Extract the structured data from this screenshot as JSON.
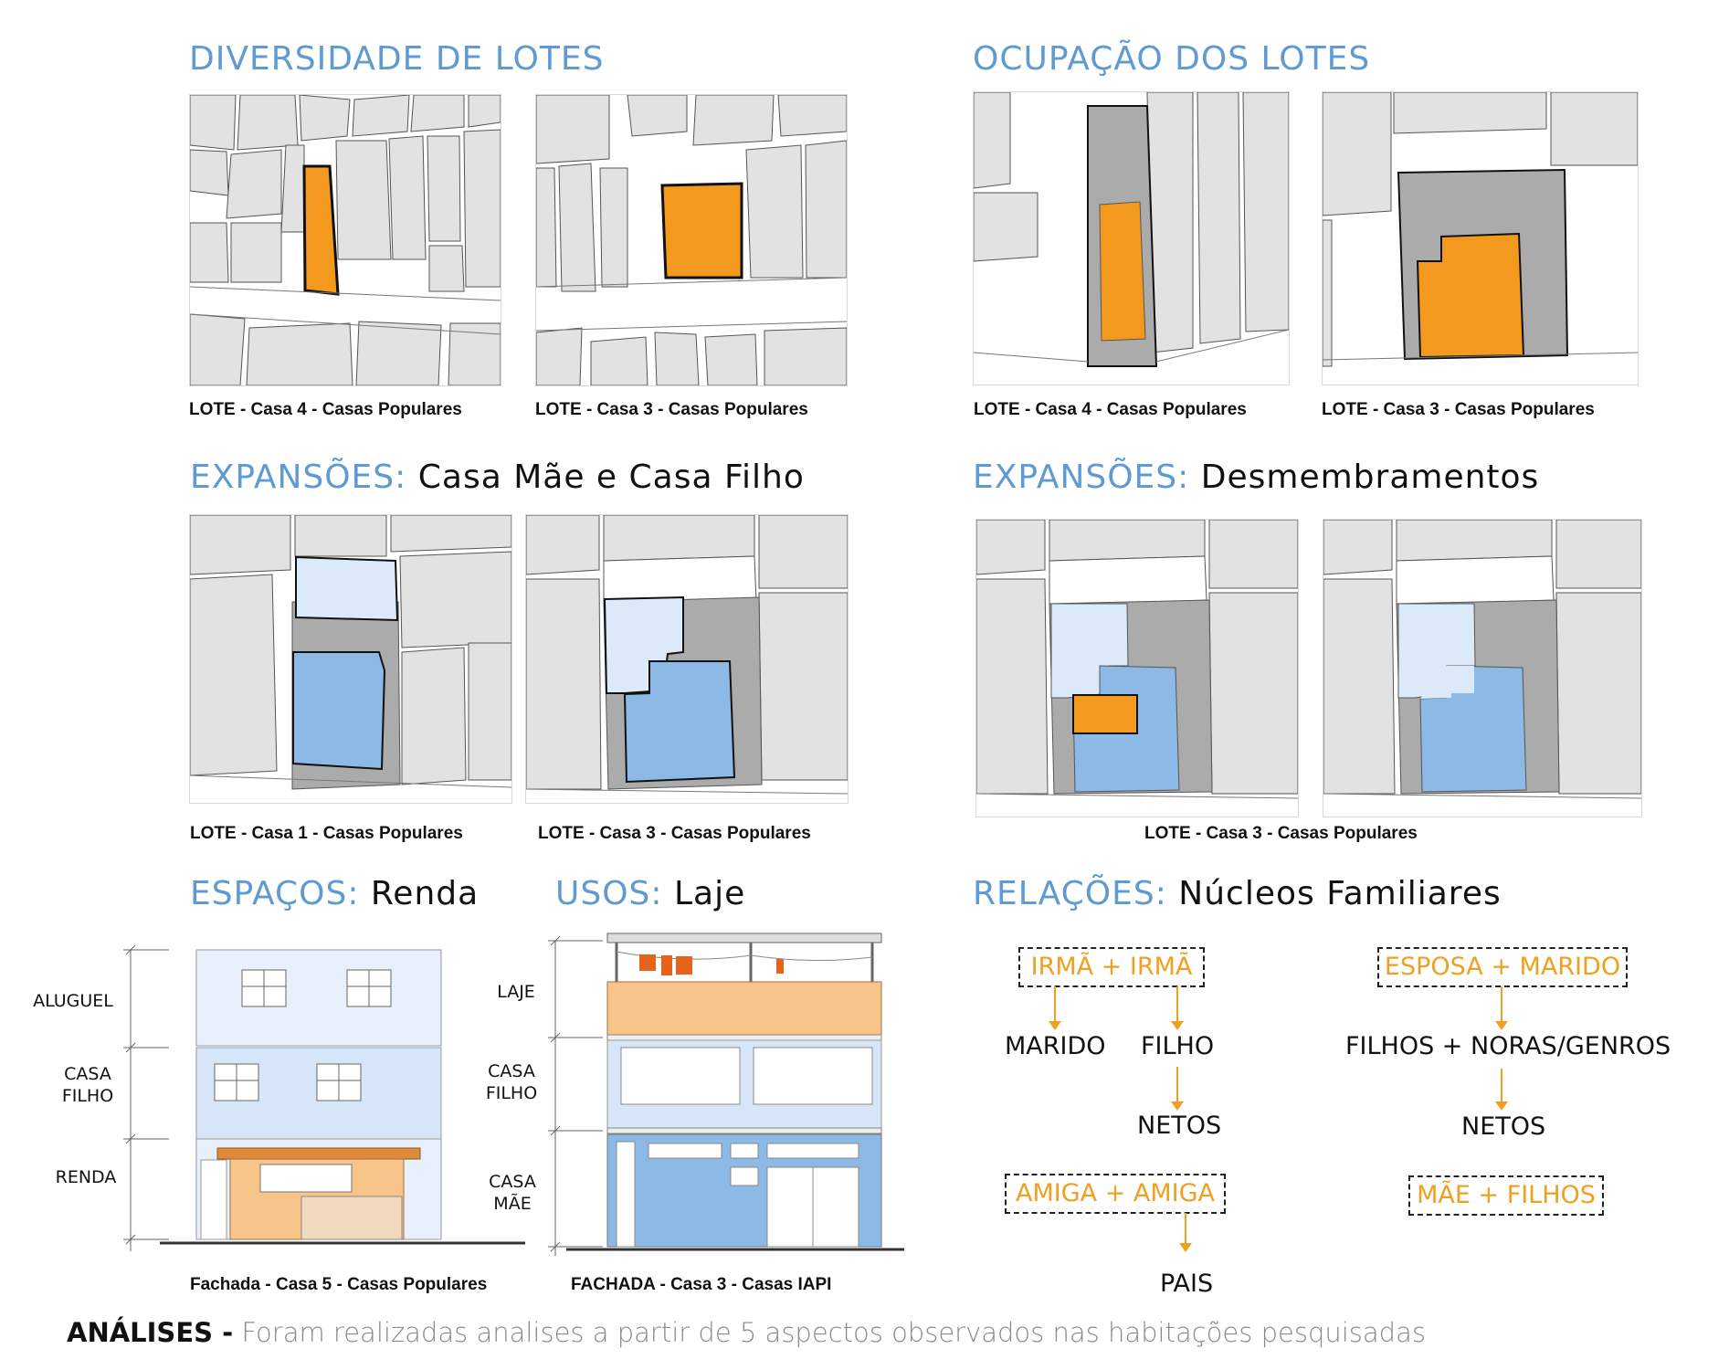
{
  "sections": {
    "diversidade": {
      "title": "DIVERSIDADE DE LOTES"
    },
    "ocupacao": {
      "title": "OCUPAÇÃO DOS LOTES"
    },
    "exp_mae": {
      "title_a": "EXPANSÕES:",
      "title_b": "Casa Mãe e Casa Filho"
    },
    "exp_des": {
      "title_a": "EXPANSÕES:",
      "title_b": "Desmembramentos"
    },
    "espacos": {
      "title_a": "ESPAÇOS:",
      "title_b": "Renda"
    },
    "usos": {
      "title_a": "USOS:",
      "title_b": "Laje"
    },
    "relacoes": {
      "title_a": "RELAÇÕES:",
      "title_b": "Núcleos Familiares"
    }
  },
  "captions": {
    "div_1": "LOTE - Casa 4 - Casas Populares",
    "div_2": "LOTE - Casa 3 - Casas Populares",
    "ocu_1": "LOTE - Casa 4 - Casas Populares",
    "ocu_2": "LOTE - Casa 3 - Casas Populares",
    "mae_1": "LOTE - Casa 1 - Casas Populares",
    "mae_2": "LOTE - Casa 3 - Casas Populares",
    "des": "LOTE - Casa 3 - Casas Populares",
    "fach_1": "Fachada - Casa 5 - Casas Populares",
    "fach_2": "FACHADA - Casa 3 - Casas IAPI"
  },
  "facade_labels": {
    "renda": {
      "aluguel": "ALUGUEL",
      "casa": "CASA",
      "filho": "FILHO",
      "renda": "RENDA"
    },
    "laje": {
      "laje": "LAJE",
      "casa1": "CASA",
      "filho": "FILHO",
      "casa2": "CASA",
      "mae": "MÃE"
    }
  },
  "relations": {
    "box_irma": "IRMÃ + IRMÃ",
    "marido": "MARIDO",
    "filho": "FILHO",
    "netos_1": "NETOS",
    "box_amiga": "AMIGA + AMIGA",
    "pais": "PAIS",
    "box_esposa": "ESPOSA + MARIDO",
    "filhos_noras": "FILHOS + NORAS/GENROS",
    "netos_2": "NETOS",
    "box_mae": "MÃE + FILHOS"
  },
  "footer": {
    "bold": "ANÁLISES -",
    "text": "Foram realizadas analises a partir de 5 aspectos observados nas habitações pesquisadas"
  },
  "colors": {
    "blue_title": "#5f9bd2",
    "orange": "#f39a1e",
    "lot_gray": "#e2e2e2",
    "dark_gray": "#ababab",
    "light_blue": "#dbe9f8",
    "mid_blue": "#8cb9e6"
  }
}
